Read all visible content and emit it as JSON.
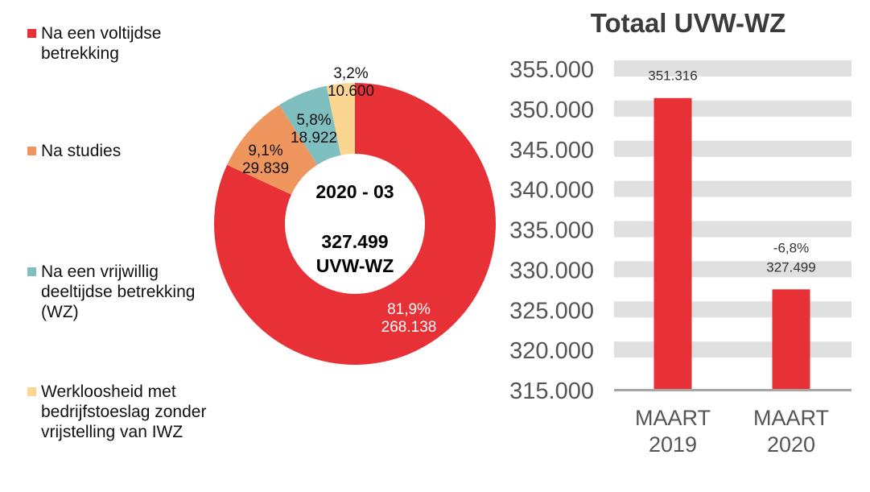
{
  "chart_data": [
    {
      "type": "pie",
      "variant": "donut",
      "center_label": {
        "period": "2020 - 03",
        "total": "327.499",
        "unit": "UVW-WZ"
      },
      "slices": [
        {
          "name": "Na een voltijdse betrekking",
          "percent_label": "81,9%",
          "value_label": "268.138",
          "value": 268138,
          "color": "#e83037",
          "label_color": "#ffffff"
        },
        {
          "name": "Na studies",
          "percent_label": "9,1%",
          "value_label": "29.839",
          "value": 29839,
          "color": "#ef955e",
          "label_color": "#111111"
        },
        {
          "name": "Na een vrijwillig deeltijdse betrekking (WZ)",
          "percent_label": "5,8%",
          "value_label": "18.922",
          "value": 18922,
          "color": "#7fbfbf",
          "label_color": "#111111"
        },
        {
          "name": "Werkloosheid met bedrijfstoeslag zonder vrijstelling van IWZ",
          "percent_label": "3,2%",
          "value_label": "10.600",
          "value": 10600,
          "color": "#fcd591",
          "label_color": "#111111"
        }
      ],
      "legend_position": "left"
    },
    {
      "type": "bar",
      "title": "Totaal UVW-WZ",
      "categories": [
        "MAART\n2019",
        "MAART\n2020"
      ],
      "values": [
        351316,
        327499
      ],
      "data_labels": [
        "351.316",
        "-6,8%\n327.499"
      ],
      "ylim": [
        315000,
        355000
      ],
      "yticks": [
        "315.000",
        "320.000",
        "325.000",
        "330.000",
        "335.000",
        "340.000",
        "345.000",
        "350.000",
        "355.000"
      ],
      "grid": true,
      "bar_color": "#e83037",
      "grid_color": "#e0e0e0"
    }
  ]
}
